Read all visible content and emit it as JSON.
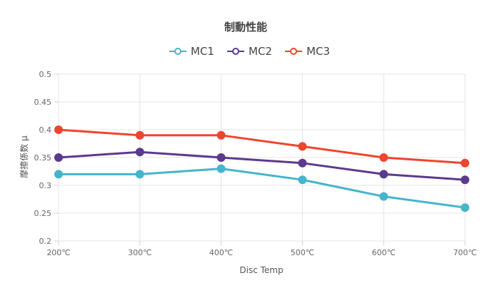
{
  "chart_data": {
    "type": "line",
    "title": "制動性能",
    "xlabel": "Disc Temp",
    "ylabel": "摩擦係数 μ",
    "categories": [
      "200℃",
      "300℃",
      "400℃",
      "500℃",
      "600℃",
      "700℃"
    ],
    "ylim": [
      0.2,
      0.5
    ],
    "yticks": [
      "0.2",
      "0.25",
      "0.3",
      "0.35",
      "0.4",
      "0.45",
      "0.5"
    ],
    "grid": true,
    "legend_position": "top-center",
    "series": [
      {
        "name": "MC1",
        "color": "#45b5cc",
        "values": [
          0.32,
          0.32,
          0.33,
          0.31,
          0.28,
          0.26
        ]
      },
      {
        "name": "MC2",
        "color": "#5b3a8e",
        "values": [
          0.35,
          0.36,
          0.35,
          0.34,
          0.32,
          0.31
        ]
      },
      {
        "name": "MC3",
        "color": "#ee4530",
        "values": [
          0.4,
          0.39,
          0.39,
          0.37,
          0.35,
          0.34
        ]
      }
    ]
  }
}
